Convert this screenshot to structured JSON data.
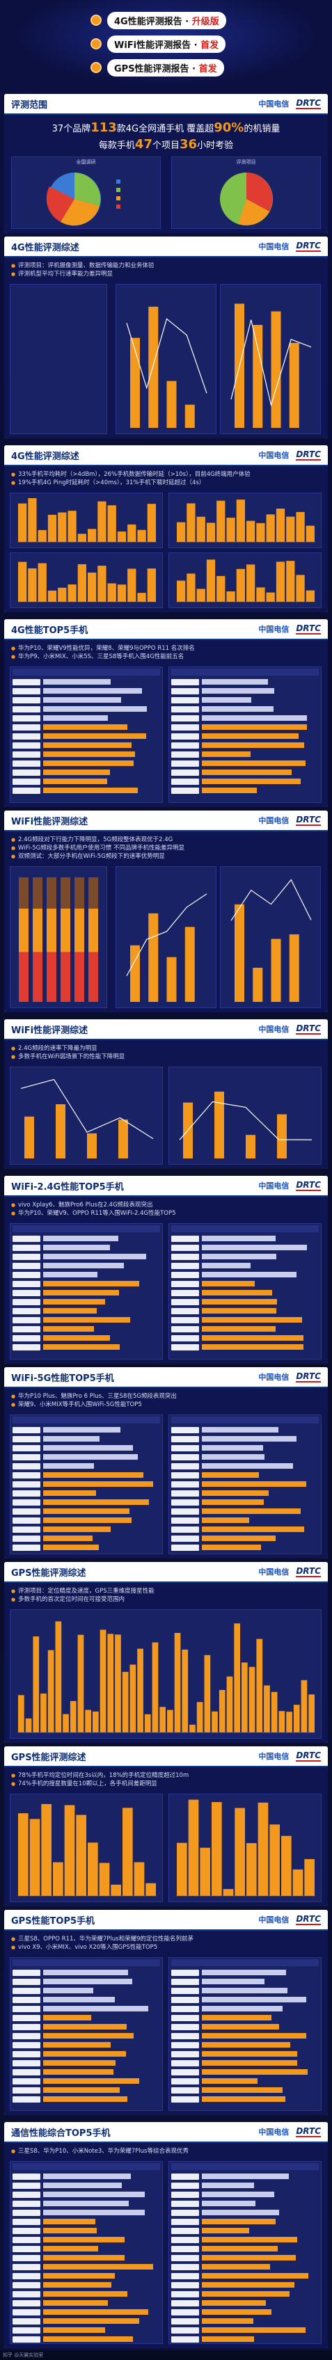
{
  "hero": {
    "items": [
      {
        "text": "4G性能评测报告",
        "suffix": "升级版"
      },
      {
        "text": "WiFi性能评测报告",
        "suffix": "首发"
      },
      {
        "text": "GPS性能评测报告",
        "suffix": "首发"
      }
    ]
  },
  "logos": {
    "ct": "中国电信",
    "drtc": "DRTC"
  },
  "s1": {
    "title": "评测范围",
    "line1_a": "37个品牌",
    "line1_num1": "113",
    "line1_b": "款4G全网通手机 覆盖超",
    "line1_num2": "90%",
    "line1_c": "的机销量",
    "line2_a": "每款手机",
    "line2_num1": "47",
    "line2_b": "个项目",
    "line2_num2": "36",
    "line2_c": "小时考验",
    "pie1_title": "全国调研",
    "pie2_title": "评测项目"
  },
  "s2": {
    "title": "4G性能评测综述",
    "bullets": [
      "评测项目：评机摄像测量、数据传输能力和业务体验",
      "评测机型平均下行速率能力差异明显"
    ]
  },
  "s3": {
    "title": "4G性能评测综述",
    "bullets": [
      "33%手机平均耗时（>4dBm），26%手机数据传输时延（>10s），目前4G终端用户体验",
      "19%手机4G Ping时延耗时（>40ms），31%手机下载时延超过（4s）"
    ]
  },
  "s4": {
    "title": "4G性能TOP5手机",
    "bullets": [
      "华为P10、荣耀V9性能优异，荣耀8、荣耀9与OPPO R11 名次排名",
      "华为P9、小米MIX、小米5S、三星S8等手机入围4G性能前五名"
    ]
  },
  "s5": {
    "title": "WiFi性能评测综述",
    "bullets": [
      "2.4G频段对下行能力下降明显，5G频段整体表现优于2.4G",
      "WiFi-5G频段多数手机用户使用习惯 不同品牌手机性能差异明显",
      "双频测试：大部分手机在WiFi-5G频段下的速率优势明显"
    ]
  },
  "s6": {
    "title": "WiFi性能评测综述",
    "bullets": [
      "2.4G频段的速率下降最为明显",
      "多数手机在WiFi弱场景下的性能下降明显"
    ]
  },
  "s7": {
    "title": "WiFi-2.4G性能TOP5手机",
    "bullets": [
      "vivo Xplay6、魅族Pro6 Plus在2.4G频段表现突出",
      "华为P10、荣耀V9、OPPO R11等入围WiFi-2.4G性能TOP5"
    ]
  },
  "s8": {
    "title": "WiFi-5G性能TOP5手机",
    "bullets": [
      "华为P10 Plus、魅族Pro 6 Plus、三星S8在5G频段表现突出",
      "荣耀9、小米MIX等手机入围WiFi-5G性能TOP5"
    ]
  },
  "s9": {
    "title": "GPS性能评测综述",
    "bullets": [
      "评测项目：定位精度及速度，GPS三重维度搜星性能",
      "多数手机的首次定位时间在可接受范围内"
    ]
  },
  "s10": {
    "title": "GPS性能评测综述",
    "bullets": [
      "78%手机平均定位时间在3s以内，18%的手机定位精度超过10m",
      "74%手机的搜星数量在10颗以上，各手机间差距明显"
    ]
  },
  "s11": {
    "title": "GPS性能TOP5手机",
    "bullets": [
      "三星S8、OPPO R11、华为荣耀7Plus和荣耀9的定位性能名列前茅",
      "vivo X9、小米MIX、vivo X20等入围GPS性能TOP5"
    ]
  },
  "s12": {
    "title": "通信性能综合TOP5手机",
    "bullets": [
      "三星S8、华为P10、小米Note3、华为荣耀7Plus等综合表现优秀"
    ]
  },
  "footer": "知乎 @天翼实验室",
  "colors": {
    "orange": "#f39a1e",
    "navy": "#0e1550",
    "accent": "#d0201b"
  }
}
